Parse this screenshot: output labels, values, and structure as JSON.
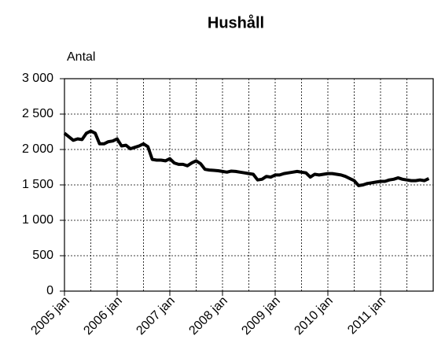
{
  "chart_data": {
    "type": "line",
    "title": "Hushåll",
    "y_label": "Antal",
    "categories": [
      "2005 jan",
      null,
      null,
      null,
      null,
      null,
      null,
      null,
      null,
      null,
      null,
      null,
      "2006 jan",
      null,
      null,
      null,
      null,
      null,
      null,
      null,
      null,
      null,
      null,
      null,
      "2007 jan",
      null,
      null,
      null,
      null,
      null,
      null,
      null,
      null,
      null,
      null,
      null,
      "2008 jan",
      null,
      null,
      null,
      null,
      null,
      null,
      null,
      null,
      null,
      null,
      null,
      "2009 jan",
      null,
      null,
      null,
      null,
      null,
      null,
      null,
      null,
      null,
      null,
      null,
      "2010 jan",
      null,
      null,
      null,
      null,
      null,
      null,
      null,
      null,
      null,
      null,
      null,
      "2011 jan",
      null,
      null,
      null,
      null,
      null,
      null,
      null,
      null,
      null,
      null,
      null
    ],
    "values": [
      2230,
      2180,
      2130,
      2150,
      2140,
      2230,
      2260,
      2230,
      2080,
      2080,
      2110,
      2120,
      2150,
      2050,
      2060,
      2010,
      2030,
      2050,
      2080,
      2040,
      1860,
      1850,
      1850,
      1840,
      1870,
      1810,
      1790,
      1790,
      1770,
      1810,
      1840,
      1800,
      1720,
      1710,
      1705,
      1700,
      1690,
      1680,
      1695,
      1690,
      1680,
      1670,
      1660,
      1650,
      1570,
      1580,
      1620,
      1610,
      1640,
      1640,
      1660,
      1670,
      1680,
      1690,
      1680,
      1670,
      1610,
      1650,
      1640,
      1650,
      1660,
      1660,
      1650,
      1640,
      1620,
      1590,
      1560,
      1490,
      1500,
      1520,
      1530,
      1540,
      1550,
      1550,
      1570,
      1580,
      1600,
      1580,
      1570,
      1560,
      1560,
      1570,
      1560,
      1590
    ],
    "color": "#000000",
    "ylim": [
      0,
      3000
    ],
    "yticks": [
      0,
      500,
      {
        "value": 1000,
        "label": "1 000"
      },
      {
        "value": 1500,
        "label": "1 500"
      },
      {
        "value": 2000,
        "label": "2 000"
      },
      {
        "value": 2500,
        "label": "2 500"
      },
      {
        "value": 3000,
        "label": "3 000"
      }
    ],
    "grid": true
  }
}
